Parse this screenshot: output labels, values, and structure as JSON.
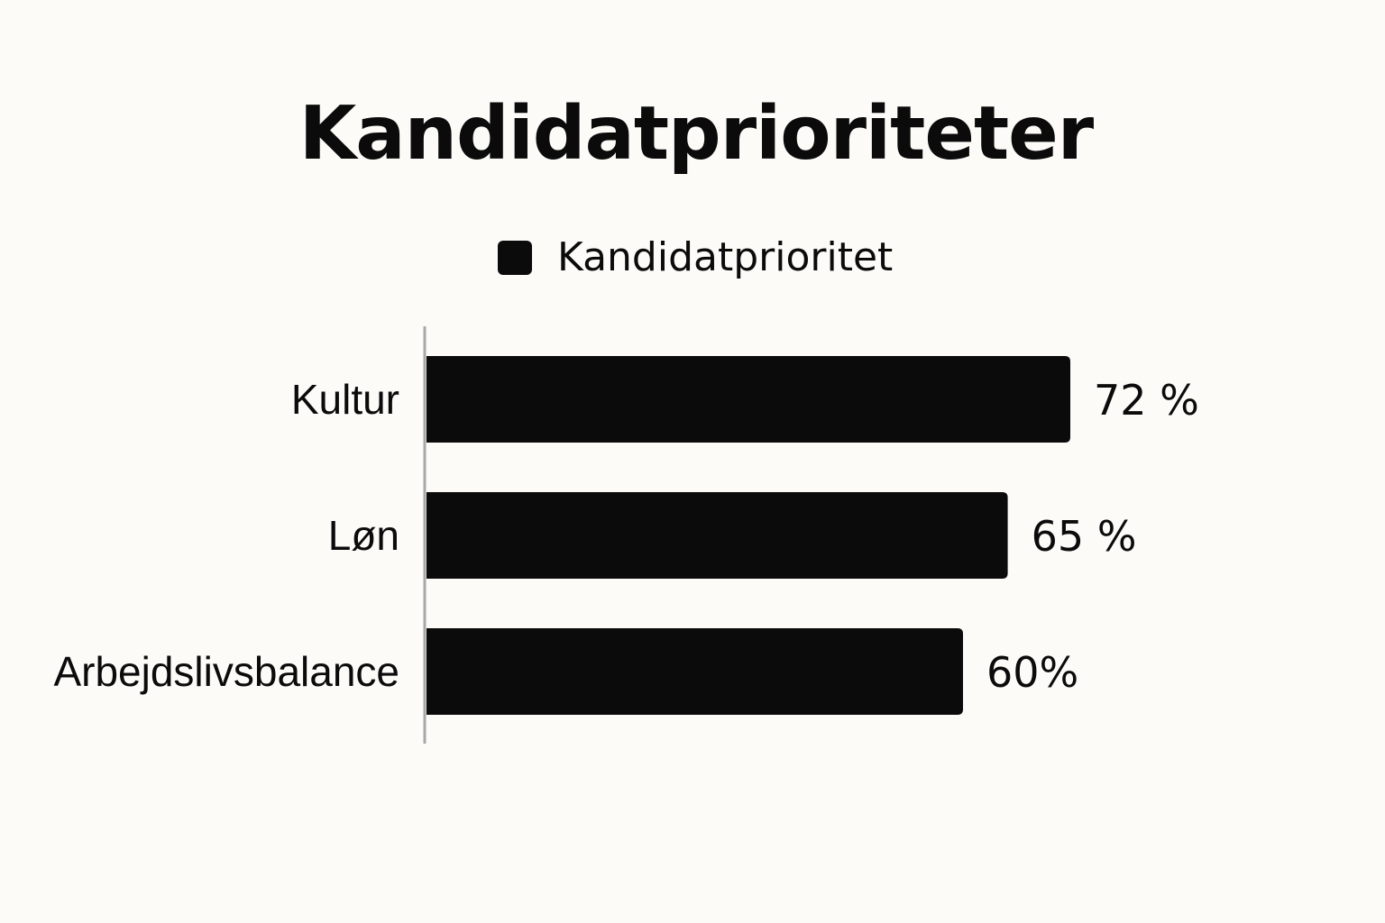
{
  "chart_data": {
    "type": "bar",
    "orientation": "horizontal",
    "title": "Kandidatprioriteter",
    "legend": {
      "position": "top-center"
    },
    "categories": [
      "Kultur",
      "Løn",
      "Arbejdslivsbalance"
    ],
    "series": [
      {
        "name": "Kandidatprioritet",
        "color": "#0b0b0b",
        "values": [
          72,
          65,
          60
        ]
      }
    ],
    "value_labels": [
      "72 %",
      "65 %",
      "60%"
    ],
    "unit": "%",
    "xlabel": "",
    "ylabel": "",
    "grid": false
  }
}
